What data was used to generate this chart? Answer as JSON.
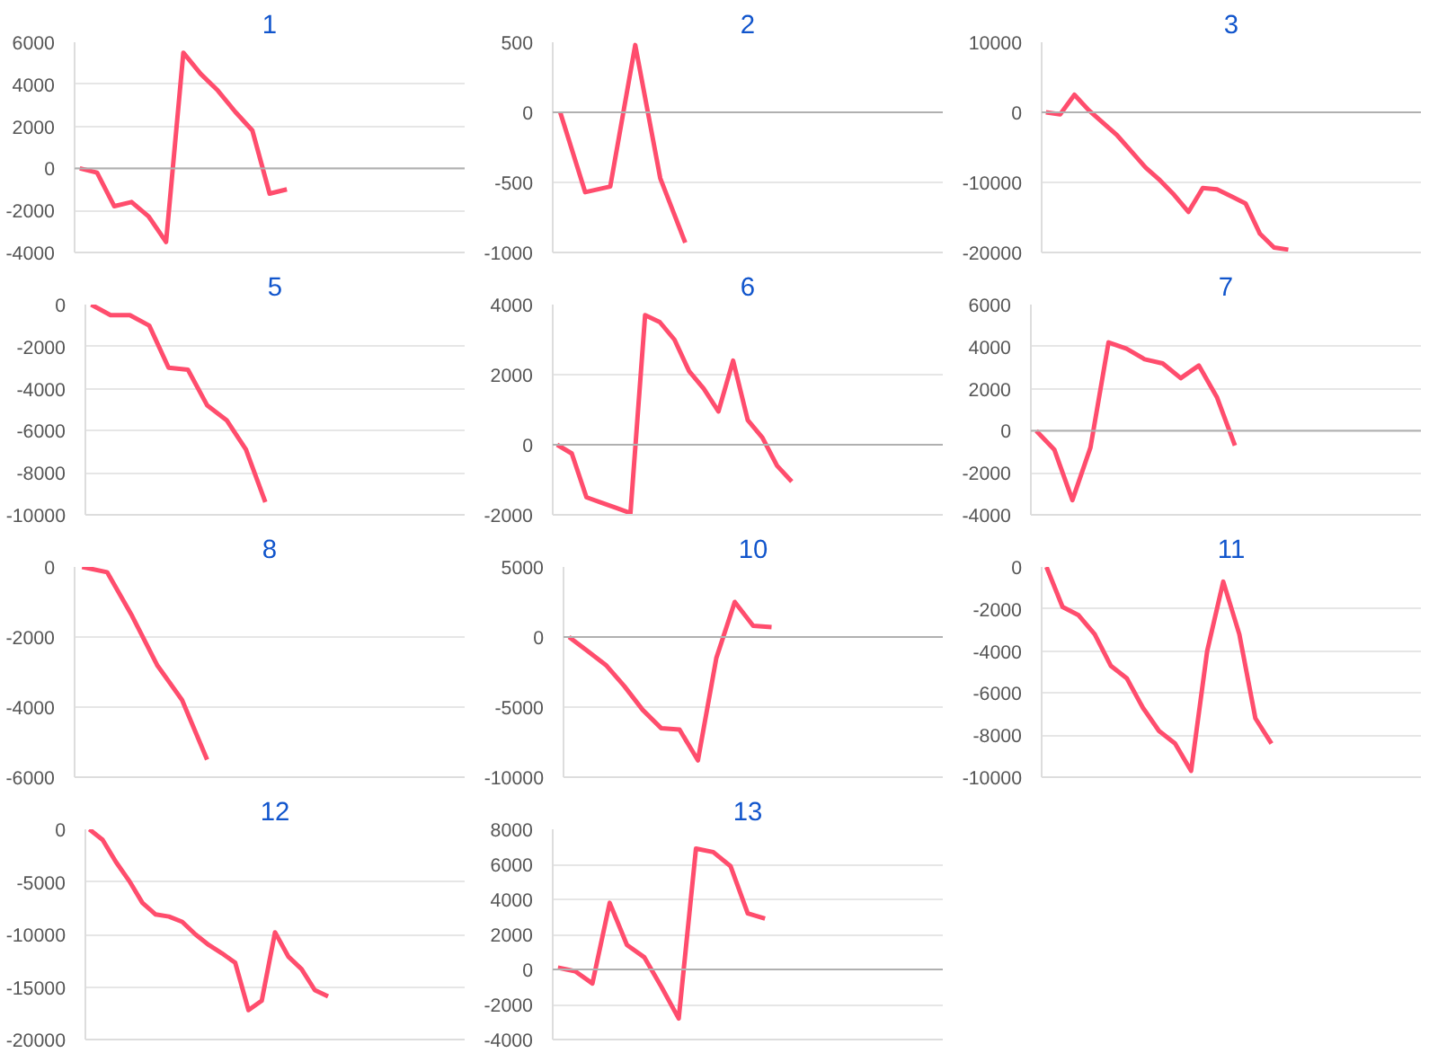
{
  "chart_data": [
    {
      "type": "line",
      "title": "1",
      "color": "#ff4d6d",
      "grid": "y",
      "tick_labels": "y",
      "ylim": [
        -4000,
        6000
      ],
      "yticks": [
        -4000,
        -2000,
        0,
        2000,
        4000,
        6000
      ],
      "categories": [
        null,
        null,
        null,
        null,
        null,
        null,
        null,
        null,
        null,
        null,
        null,
        null,
        null,
        null,
        null,
        null,
        null,
        null,
        null,
        null,
        null,
        null,
        null
      ],
      "values": [
        0,
        -200,
        -1800,
        -1600,
        -2300,
        -3500,
        5500,
        4500,
        3700,
        2700,
        1800,
        -1200,
        -1000,
        null,
        null,
        null,
        null,
        null,
        null,
        null,
        null,
        null,
        null
      ]
    },
    {
      "type": "line",
      "title": "2",
      "color": "#ff4d6d",
      "grid": "y",
      "tick_labels": "y",
      "ylim": [
        -1000,
        500
      ],
      "yticks": [
        -1000,
        -500,
        0,
        500
      ],
      "categories": [
        null,
        null,
        null,
        null,
        null,
        null,
        null,
        null,
        null,
        null,
        null,
        null,
        null,
        null,
        null,
        null
      ],
      "values": [
        0,
        -570,
        -530,
        480,
        -470,
        -930,
        null,
        null,
        null,
        null,
        null,
        null,
        null,
        null,
        null,
        null
      ]
    },
    {
      "type": "line",
      "title": "3",
      "color": "#ff4d6d",
      "grid": "y",
      "tick_labels": "y",
      "ylim": [
        -20000,
        10000
      ],
      "yticks": [
        -20000,
        -10000,
        0,
        10000
      ],
      "categories": [
        null,
        null,
        null,
        null,
        null,
        null,
        null,
        null,
        null,
        null,
        null,
        null,
        null,
        null,
        null,
        null,
        null,
        null,
        null,
        null,
        null,
        null,
        null,
        null,
        null,
        null,
        null
      ],
      "values": [
        0,
        -300,
        2500,
        300,
        -1500,
        -3300,
        -5600,
        -7900,
        -9700,
        -11800,
        -14200,
        -10800,
        -11000,
        -12000,
        -13000,
        -17300,
        -19300,
        -19600,
        null,
        null,
        null,
        null,
        null,
        null,
        null,
        null,
        null
      ]
    },
    {
      "type": "line",
      "title": "5",
      "color": "#ff4d6d",
      "grid": "y",
      "tick_labels": "y",
      "ylim": [
        -10000,
        0
      ],
      "yticks": [
        -10000,
        -8000,
        -6000,
        -4000,
        -2000,
        0
      ],
      "categories": [
        null,
        null,
        null,
        null,
        null,
        null,
        null,
        null,
        null,
        null,
        null,
        null,
        null,
        null,
        null,
        null,
        null,
        null,
        null,
        null
      ],
      "values": [
        0,
        -500,
        -500,
        -1000,
        -3000,
        -3100,
        -4800,
        -5500,
        -6900,
        -9400,
        null,
        null,
        null,
        null,
        null,
        null,
        null,
        null,
        null,
        null
      ]
    },
    {
      "type": "line",
      "title": "6",
      "color": "#ff4d6d",
      "grid": "y",
      "tick_labels": "y",
      "ylim": [
        -2000,
        4000
      ],
      "yticks": [
        -2000,
        0,
        2000,
        4000
      ],
      "categories": [
        null,
        null,
        null,
        null,
        null,
        null,
        null,
        null,
        null,
        null,
        null,
        null,
        null,
        null,
        null,
        null,
        null,
        null,
        null,
        null,
        null,
        null,
        null,
        null,
        null,
        null,
        null
      ],
      "values": [
        0,
        -250,
        -1500,
        -1650,
        -1800,
        -1950,
        3700,
        3500,
        3000,
        2100,
        1600,
        950,
        2400,
        700,
        200,
        -600,
        -1050,
        null,
        null,
        null,
        null,
        null,
        null,
        null,
        null,
        null,
        null
      ]
    },
    {
      "type": "line",
      "title": "7",
      "color": "#ff4d6d",
      "grid": "y",
      "tick_labels": "y",
      "ylim": [
        -4000,
        6000
      ],
      "yticks": [
        -4000,
        -2000,
        0,
        2000,
        4000,
        6000
      ],
      "categories": [
        null,
        null,
        null,
        null,
        null,
        null,
        null,
        null,
        null,
        null,
        null,
        null,
        null,
        null,
        null,
        null,
        null,
        null,
        null,
        null,
        null,
        null
      ],
      "values": [
        0,
        -900,
        -3300,
        -800,
        4200,
        3900,
        3400,
        3200,
        2500,
        3100,
        1600,
        -700,
        null,
        null,
        null,
        null,
        null,
        null,
        null,
        null,
        null,
        null
      ]
    },
    {
      "type": "line",
      "title": "8",
      "color": "#ff4d6d",
      "grid": "y",
      "tick_labels": "y",
      "ylim": [
        -6000,
        0
      ],
      "yticks": [
        -6000,
        -4000,
        -2000,
        0
      ],
      "categories": [
        null,
        null,
        null,
        null,
        null,
        null,
        null,
        null,
        null,
        null,
        null,
        null,
        null,
        null,
        null,
        null
      ],
      "values": [
        0,
        -150,
        -1400,
        -2800,
        -3800,
        -5500,
        null,
        null,
        null,
        null,
        null,
        null,
        null,
        null,
        null,
        null
      ]
    },
    {
      "type": "line",
      "title": "10",
      "color": "#ff4d6d",
      "grid": "y",
      "tick_labels": "y",
      "ylim": [
        -10000,
        5000
      ],
      "yticks": [
        -10000,
        -5000,
        0,
        5000
      ],
      "categories": [
        null,
        null,
        null,
        null,
        null,
        null,
        null,
        null,
        null,
        null,
        null,
        null,
        null,
        null,
        null,
        null,
        null,
        null,
        null,
        null,
        null
      ],
      "values": [
        0,
        -1000,
        -2000,
        -3500,
        -5200,
        -6500,
        -6600,
        -8800,
        -1500,
        2500,
        800,
        700,
        null,
        null,
        null,
        null,
        null,
        null,
        null,
        null,
        null
      ]
    },
    {
      "type": "line",
      "title": "11",
      "color": "#ff4d6d",
      "grid": "y",
      "tick_labels": "y",
      "ylim": [
        -10000,
        0
      ],
      "yticks": [
        -10000,
        -8000,
        -6000,
        -4000,
        -2000,
        0
      ],
      "categories": [
        null,
        null,
        null,
        null,
        null,
        null,
        null,
        null,
        null,
        null,
        null,
        null,
        null,
        null,
        null,
        null,
        null,
        null,
        null,
        null,
        null,
        null,
        null,
        null
      ],
      "values": [
        0,
        -1900,
        -2300,
        -3200,
        -4700,
        -5300,
        -6700,
        -7800,
        -8400,
        -9700,
        -4000,
        -700,
        -3200,
        -7200,
        -8400,
        null,
        null,
        null,
        null,
        null,
        null,
        null,
        null,
        null
      ]
    },
    {
      "type": "line",
      "title": "12",
      "color": "#ff4d6d",
      "grid": "y",
      "tick_labels": "y",
      "ylim": [
        -20000,
        0
      ],
      "yticks": [
        -20000,
        -15000,
        -10000,
        -5000,
        0
      ],
      "categories": [
        null,
        null,
        null,
        null,
        null,
        null,
        null,
        null,
        null,
        null,
        null,
        null,
        null,
        null,
        null,
        null,
        null,
        null,
        null,
        null,
        null,
        null,
        null,
        null,
        null,
        null,
        null,
        null,
        null
      ],
      "values": [
        0,
        -1000,
        -3100,
        -4900,
        -7000,
        -8100,
        -8300,
        -8800,
        -10000,
        -11000,
        -11800,
        -12700,
        -17200,
        -16300,
        -9800,
        -12100,
        -13300,
        -15300,
        -15900,
        null,
        null,
        null,
        null,
        null,
        null,
        null,
        null,
        null,
        null
      ]
    },
    {
      "type": "line",
      "title": "13",
      "color": "#ff4d6d",
      "grid": "y",
      "tick_labels": "y",
      "ylim": [
        -4000,
        8000
      ],
      "yticks": [
        -4000,
        -2000,
        0,
        2000,
        4000,
        6000,
        8000
      ],
      "categories": [
        null,
        null,
        null,
        null,
        null,
        null,
        null,
        null,
        null,
        null,
        null,
        null,
        null,
        null,
        null,
        null,
        null,
        null,
        null,
        null,
        null,
        null,
        null
      ],
      "values": [
        100,
        -100,
        -800,
        3800,
        1400,
        700,
        -1000,
        -2800,
        6900,
        6700,
        5900,
        3200,
        2900,
        null,
        null,
        null,
        null,
        null,
        null,
        null,
        null,
        null,
        null
      ]
    }
  ]
}
